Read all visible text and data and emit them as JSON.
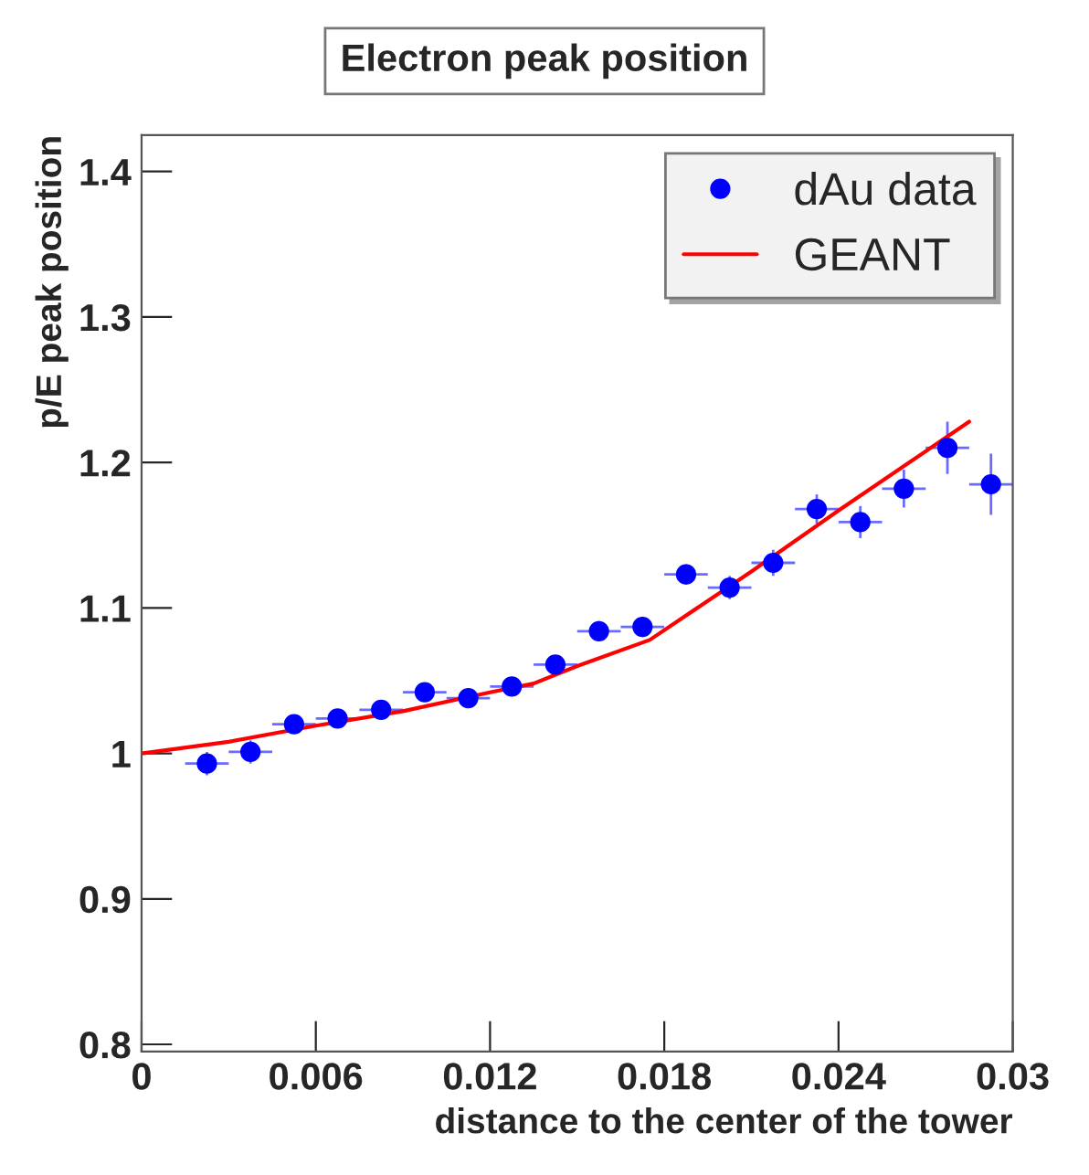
{
  "chart_data": {
    "type": "scatter",
    "title": "Electron peak position",
    "xlabel": "distance to the center of the tower",
    "ylabel": "p/E peak position",
    "series": [
      {
        "name": "dAu data",
        "color": "#0000ff",
        "x": [
          0.00225,
          0.00375,
          0.00525,
          0.00675,
          0.00825,
          0.00975,
          0.01125,
          0.01275,
          0.01425,
          0.01575,
          0.01725,
          0.01875,
          0.02025,
          0.02175,
          0.02325,
          0.02475,
          0.02625,
          0.02775,
          0.02925
        ],
        "values": [
          0.993,
          1.001,
          1.02,
          1.024,
          1.03,
          1.042,
          1.038,
          1.046,
          1.061,
          1.084,
          1.087,
          1.123,
          1.114,
          1.131,
          1.168,
          1.159,
          1.182,
          1.21,
          1.185
        ],
        "errors": [
          0.008,
          0.008,
          0.006,
          0.006,
          0.006,
          0.006,
          0.006,
          0.006,
          0.006,
          0.007,
          0.007,
          0.007,
          0.008,
          0.009,
          0.01,
          0.011,
          0.013,
          0.018,
          0.021
        ],
        "xerrors": [
          0.00075,
          0.00075,
          0.00075,
          0.00075,
          0.00075,
          0.00075,
          0.00075,
          0.00075,
          0.00075,
          0.00075,
          0.00075,
          0.00075,
          0.00075,
          0.00075,
          0.00075,
          0.00075,
          0.00075,
          0.00075,
          0.00075
        ],
        "marker": "circle"
      },
      {
        "name": "GEANT",
        "type": "line",
        "color": "#ff0000",
        "x": [
          0,
          0.003,
          0.006,
          0.009,
          0.012,
          0.0135,
          0.015,
          0.0175,
          0.021,
          0.024,
          0.0285
        ],
        "values": [
          1.0,
          1.008,
          1.019,
          1.029,
          1.042,
          1.048,
          1.06,
          1.078,
          1.125,
          1.167,
          1.228
        ],
        "line_style": "solid"
      }
    ],
    "xlim": [
      0,
      0.03
    ],
    "xticks": [
      0,
      0.006,
      0.012,
      0.018,
      0.024,
      0.03
    ],
    "ylim": [
      0.795,
      1.425
    ],
    "yticks": [
      0.8,
      0.9,
      1,
      1.1,
      1.2,
      1.3,
      1.4
    ],
    "legend": "top right",
    "grid": false
  }
}
